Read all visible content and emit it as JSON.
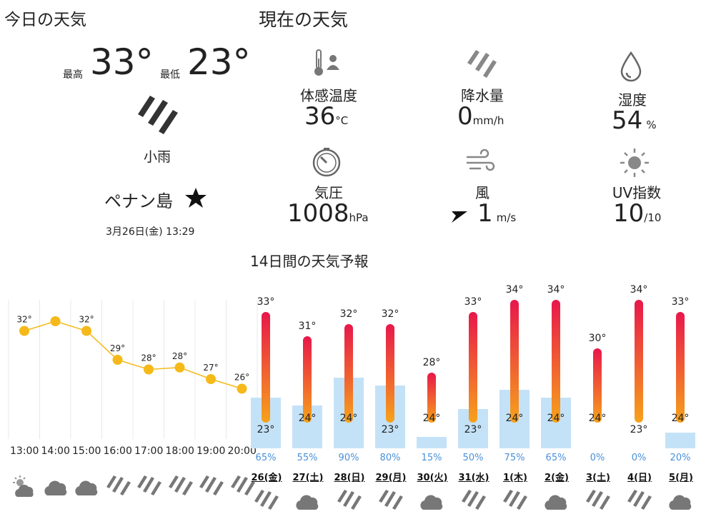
{
  "today": {
    "title": "今日の天気",
    "max_label": "最高",
    "max_temp": "33°",
    "min_label": "最低",
    "min_temp": "23°",
    "condition": "小雨",
    "location": "ペナン島",
    "favorite_icon": "star-icon",
    "datetime": "3月26日(金) 13:29"
  },
  "current": {
    "title": "現在の天気",
    "feels_label": "体感温度",
    "feels_value": "36",
    "feels_unit": "°C",
    "precip_label": "降水量",
    "precip_value": "0",
    "precip_unit": "mm/h",
    "humidity_label": "湿度",
    "humidity_value": "54",
    "humidity_unit": "%",
    "pressure_label": "気圧",
    "pressure_value": "1008",
    "pressure_unit": "hPa",
    "wind_label": "風",
    "wind_value": "1",
    "wind_unit": "m/s",
    "uv_label": "UV指数",
    "uv_value": "10",
    "uv_unit": "/10"
  },
  "forecast_title": "14日間の天気予報",
  "hourly": [
    {
      "time": "13:00",
      "temp": "32°",
      "v": 32,
      "icon": "sun-cloud-icon"
    },
    {
      "time": "14:00",
      "temp": "",
      "v": 33,
      "icon": "cloud-icon"
    },
    {
      "time": "15:00",
      "temp": "32°",
      "v": 32,
      "icon": "cloud-icon"
    },
    {
      "time": "16:00",
      "temp": "29°",
      "v": 29,
      "icon": "rain-icon"
    },
    {
      "time": "17:00",
      "temp": "28°",
      "v": 28,
      "icon": "rain-icon"
    },
    {
      "time": "18:00",
      "temp": "28°",
      "v": 28.2,
      "icon": "rain-icon"
    },
    {
      "time": "19:00",
      "temp": "27°",
      "v": 27,
      "icon": "rain-icon"
    },
    {
      "time": "20:00",
      "temp": "26°",
      "v": 26,
      "icon": "rain-icon"
    }
  ],
  "daily": [
    {
      "day": "26(金)",
      "hi": "33°",
      "lo": "23°",
      "h": 33,
      "l": 23,
      "pct": "65%",
      "p": 65
    },
    {
      "day": "27(土)",
      "hi": "31°",
      "lo": "24°",
      "h": 31,
      "l": 24,
      "pct": "55%",
      "p": 55
    },
    {
      "day": "28(日)",
      "hi": "32°",
      "lo": "24°",
      "h": 32,
      "l": 24,
      "pct": "90%",
      "p": 90
    },
    {
      "day": "29(月)",
      "hi": "32°",
      "lo": "23°",
      "h": 32,
      "l": 23,
      "pct": "80%",
      "p": 80
    },
    {
      "day": "30(火)",
      "hi": "28°",
      "lo": "24°",
      "h": 28,
      "l": 24,
      "pct": "15%",
      "p": 15
    },
    {
      "day": "31(水)",
      "hi": "33°",
      "lo": "23°",
      "h": 33,
      "l": 23,
      "pct": "50%",
      "p": 50
    },
    {
      "day": "1(木)",
      "hi": "34°",
      "lo": "24°",
      "h": 34,
      "l": 24,
      "pct": "75%",
      "p": 75
    },
    {
      "day": "2(金)",
      "hi": "34°",
      "lo": "24°",
      "h": 34,
      "l": 24,
      "pct": "65%",
      "p": 65
    },
    {
      "day": "3(土)",
      "hi": "30°",
      "lo": "24°",
      "h": 30,
      "l": 24,
      "pct": "0%",
      "p": 0
    },
    {
      "day": "4(日)",
      "hi": "34°",
      "lo": "23°",
      "h": 34,
      "l": 23,
      "pct": "0%",
      "p": 0
    },
    {
      "day": "5(月)",
      "hi": "33°",
      "lo": "24°",
      "h": 33,
      "l": 24,
      "pct": "20%",
      "p": 20
    }
  ],
  "colors": {
    "bar_top": "#e8174b",
    "bar_bottom": "#f7a21b",
    "precip": "#c4e2f7",
    "hourly": "#f5b919"
  }
}
